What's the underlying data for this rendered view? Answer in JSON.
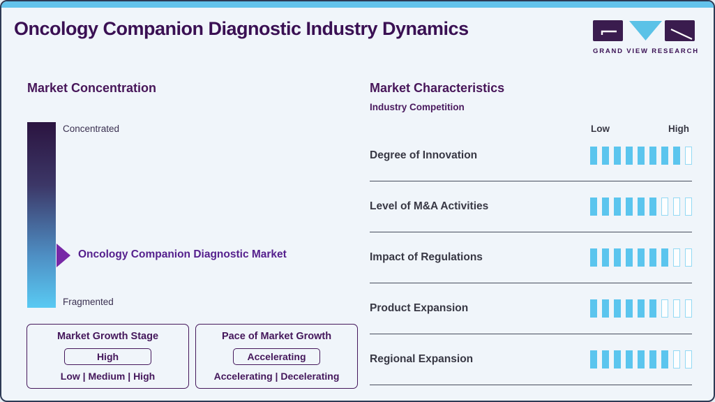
{
  "page": {
    "title": "Oncology Companion Diagnostic Industry Dynamics"
  },
  "logo": {
    "text": "GRAND VIEW RESEARCH"
  },
  "colors": {
    "background": "#F0F5FA",
    "top_strip": "#63C3EC",
    "title_purple": "#3A1053",
    "heading_purple": "#471659",
    "accent_blue": "#5BC5EE",
    "arrow_purple": "#7728A6",
    "box_purple": "#44175B",
    "gradient_top": "#2B1440",
    "gradient_bottom": "#59CAF3",
    "label_charcoal": "#383844"
  },
  "market_concentration": {
    "heading": "Market Concentration",
    "top_label": "Concentrated",
    "bottom_label": "Fragmented",
    "pointer_label": "Oncology Companion Diagnostic Market",
    "growth_stage": {
      "title": "Market Growth Stage",
      "value": "High",
      "options": "Low | Medium | High"
    },
    "growth_pace": {
      "title": "Pace of Market Growth",
      "value": "Accelerating",
      "options": "Accelerating | Decelerating"
    }
  },
  "market_characteristics": {
    "heading": "Market Characteristics",
    "subtitle": "Industry Competition",
    "scale": {
      "low": "Low",
      "high": "High"
    },
    "rows": [
      {
        "label": "Degree of Innovation",
        "filled": 8,
        "total": 9
      },
      {
        "label": "Level of M&A Activities",
        "filled": 6,
        "total": 9
      },
      {
        "label": "Impact of Regulations",
        "filled": 7,
        "total": 9
      },
      {
        "label": "Product Expansion",
        "filled": 6,
        "total": 9
      },
      {
        "label": "Regional Expansion",
        "filled": 7,
        "total": 9
      }
    ]
  },
  "chart_data": {
    "type": "bar",
    "title": "Market Characteristics - Industry Competition",
    "categories": [
      "Degree of Innovation",
      "Level of M&A Activities",
      "Impact of Regulations",
      "Product Expansion",
      "Regional Expansion"
    ],
    "values": [
      8,
      6,
      7,
      6,
      7
    ],
    "xlabel": "Low to High scale",
    "ylabel": "",
    "ylim": [
      0,
      9
    ],
    "legend": null,
    "notes": "Each row rated on a 9-segment scale from Low to High; filled segments = value"
  }
}
